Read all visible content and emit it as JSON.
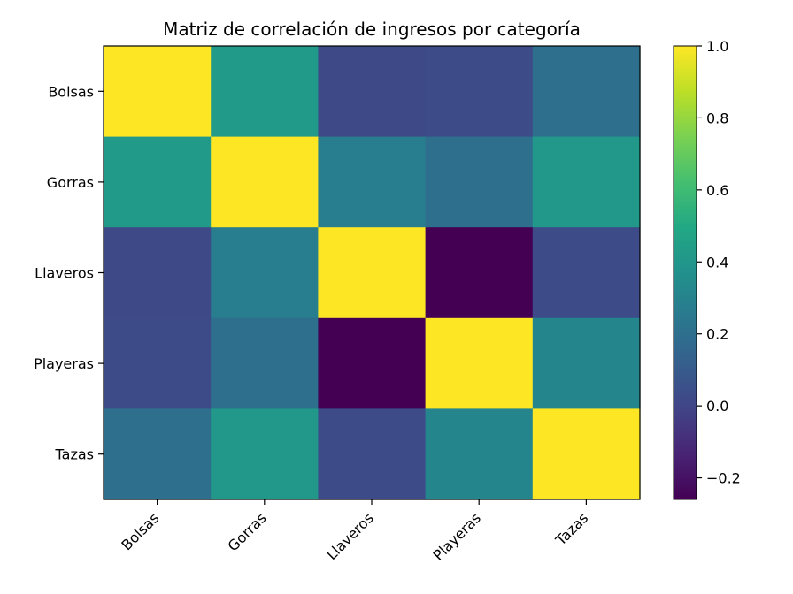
{
  "chart_data": {
    "type": "heatmap",
    "title": "Matriz de correlación de ingresos por categoría",
    "xlabel": "",
    "ylabel": "",
    "x_categories": [
      "Bolsas",
      "Gorras",
      "Llaveros",
      "Playeras",
      "Tazas"
    ],
    "y_categories": [
      "Bolsas",
      "Gorras",
      "Llaveros",
      "Playeras",
      "Tazas"
    ],
    "values": [
      [
        1.0,
        0.42,
        0.02,
        0.03,
        0.2
      ],
      [
        0.42,
        1.0,
        0.27,
        0.2,
        0.41
      ],
      [
        0.02,
        0.27,
        1.0,
        -0.26,
        0.03
      ],
      [
        0.03,
        0.2,
        -0.26,
        1.0,
        0.31
      ],
      [
        0.2,
        0.41,
        0.03,
        0.31,
        1.0
      ]
    ],
    "colormap": "viridis",
    "colorbar": {
      "vmin": -0.26,
      "vmax": 1.0,
      "ticks": [
        -0.2,
        0.0,
        0.2,
        0.4,
        0.6,
        0.8,
        1.0
      ],
      "tick_labels": [
        "−0.2",
        "0.0",
        "0.2",
        "0.4",
        "0.6",
        "0.8",
        "1.0"
      ]
    }
  }
}
